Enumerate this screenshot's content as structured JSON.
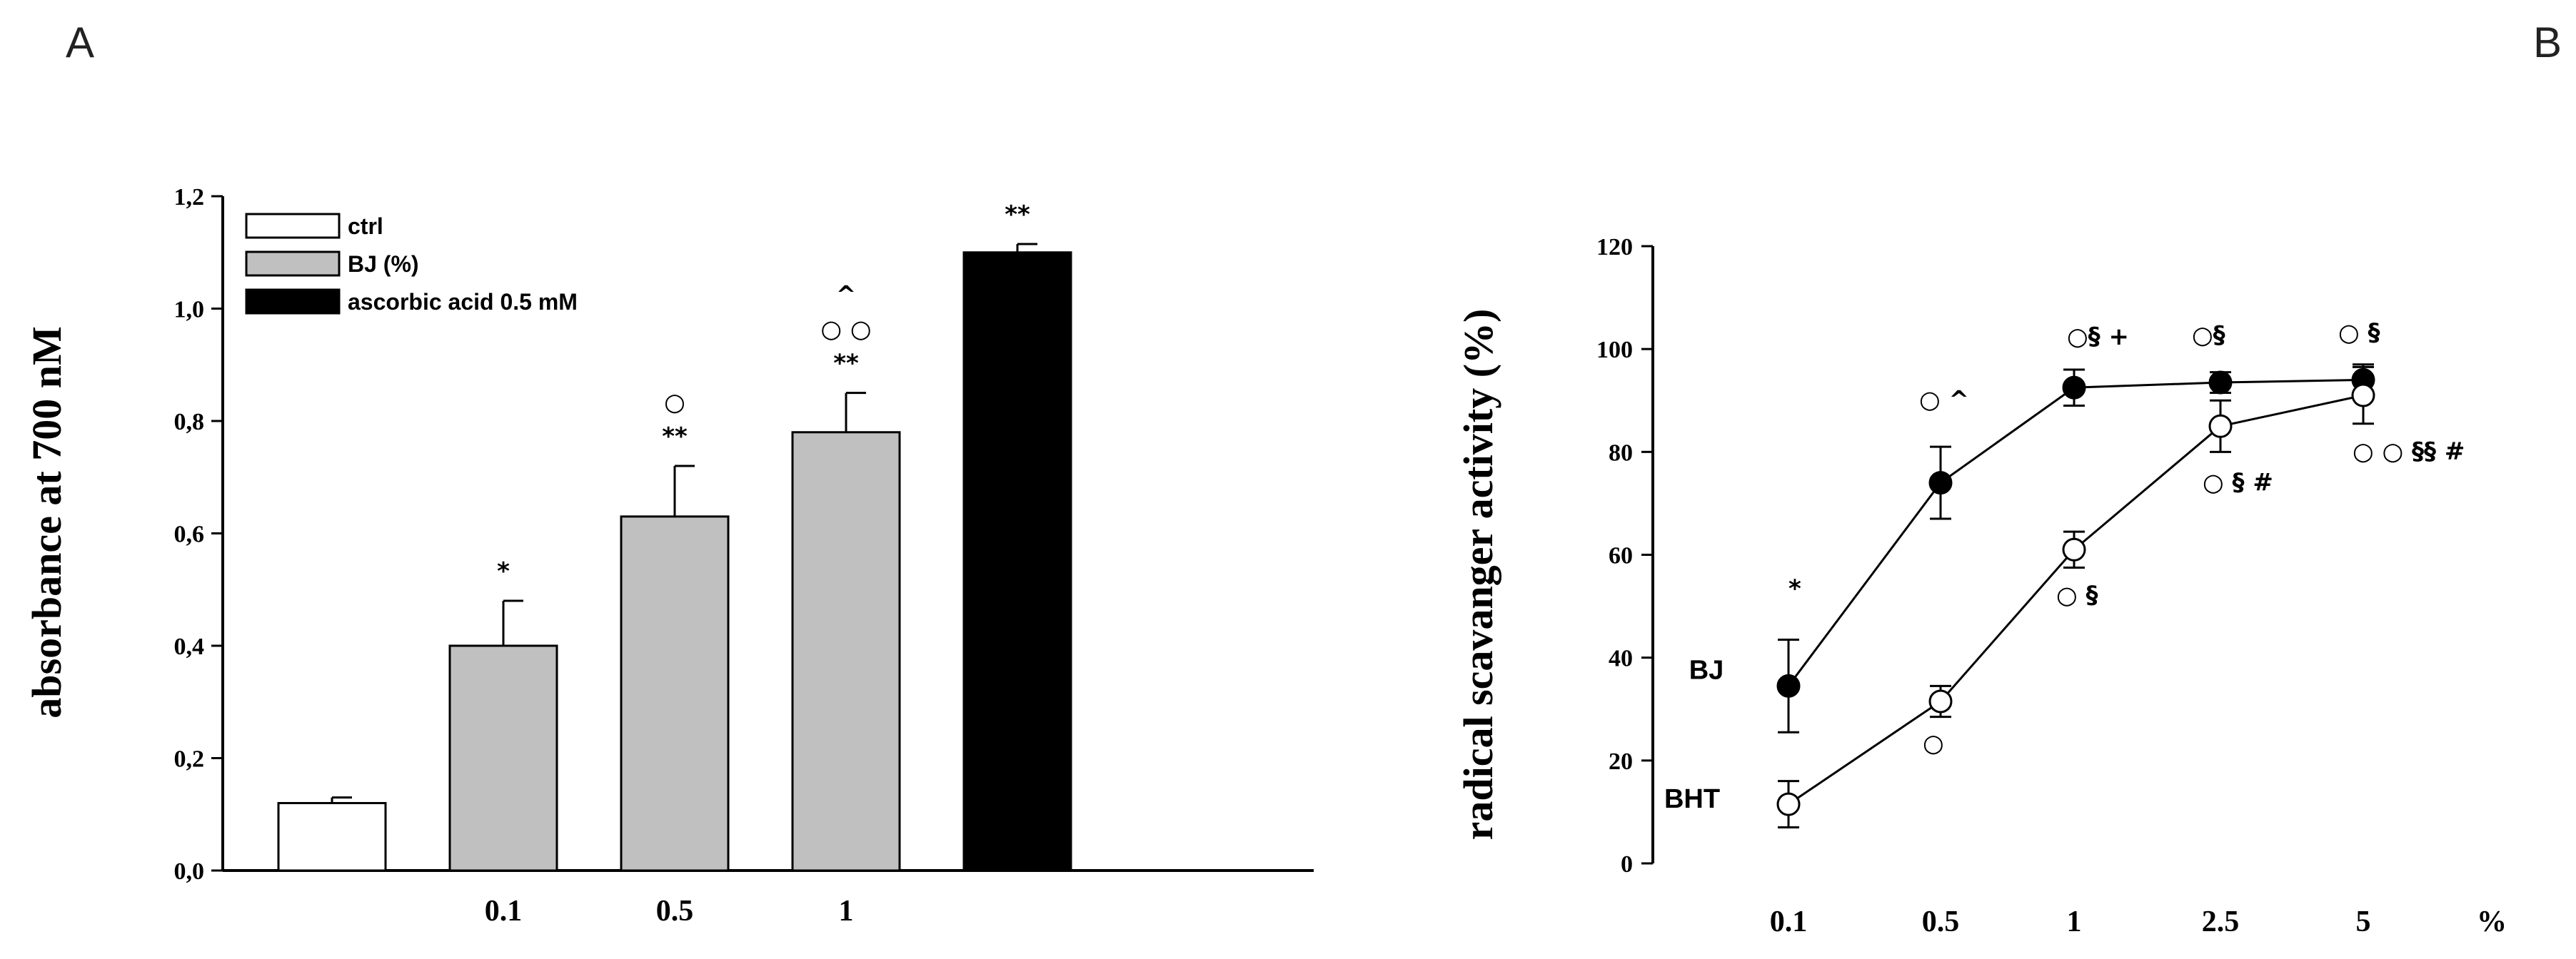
{
  "panel_labels": {
    "a": "A",
    "b": "B"
  },
  "colors": {
    "ctrl": "#ffffff",
    "bj": "#c0c0c0",
    "ascorbic": "#000000",
    "axis": "#000000"
  },
  "chart_data": [
    {
      "type": "bar",
      "panel": "A",
      "ylabel": "absorbance at 700 nM",
      "ylim": [
        0,
        1.2
      ],
      "yticks": [
        "0,0",
        "0,2",
        "0,4",
        "0,6",
        "0,8",
        "1,0",
        "1,2"
      ],
      "legend": {
        "placement": "top-left",
        "items": [
          "ctrl",
          "BJ (%)",
          "ascorbic acid 0.5 mM"
        ]
      },
      "bars": [
        {
          "group": "ctrl",
          "xlabel": "",
          "value": 0.12,
          "error": 0.01,
          "annotations": []
        },
        {
          "group": "BJ (%)",
          "xlabel": "0.1",
          "value": 0.4,
          "error": 0.08,
          "annotations": [
            "*"
          ]
        },
        {
          "group": "BJ (%)",
          "xlabel": "0.5",
          "value": 0.63,
          "error": 0.09,
          "annotations": [
            "**",
            "○"
          ]
        },
        {
          "group": "BJ (%)",
          "xlabel": "1",
          "value": 0.78,
          "error": 0.07,
          "annotations": [
            "**",
            "○ ○",
            "^"
          ]
        },
        {
          "group": "ascorbic acid 0.5 mM",
          "xlabel": "",
          "value": 1.1,
          "error": 0.015,
          "annotations": [
            "**"
          ]
        }
      ]
    },
    {
      "type": "line",
      "panel": "B",
      "ylabel": "radical scavanger activity (%)",
      "xlabel_unit": "%",
      "categories": [
        "0.1",
        "0.5",
        "1",
        "2.5",
        "5"
      ],
      "ylim": [
        0,
        120
      ],
      "yticks": [
        "0",
        "20",
        "40",
        "60",
        "80",
        "100",
        "120"
      ],
      "series": [
        {
          "name": "BJ",
          "marker": "filled",
          "values": [
            34.5,
            74.0,
            92.5,
            93.5,
            94.0
          ],
          "errors": [
            9.0,
            7.0,
            3.5,
            2.0,
            3.0
          ],
          "annotations": [
            "*",
            "○ ^",
            "○§ +",
            "○§",
            "○ §"
          ]
        },
        {
          "name": "BHT",
          "marker": "open",
          "values": [
            11.5,
            31.5,
            61.0,
            85.0,
            91.0
          ],
          "errors": [
            4.5,
            3.0,
            3.5,
            5.0,
            5.5
          ],
          "annotations": [
            "",
            "○",
            "○ §",
            "○ § #",
            "○ ○ §§ #"
          ]
        }
      ]
    }
  ]
}
